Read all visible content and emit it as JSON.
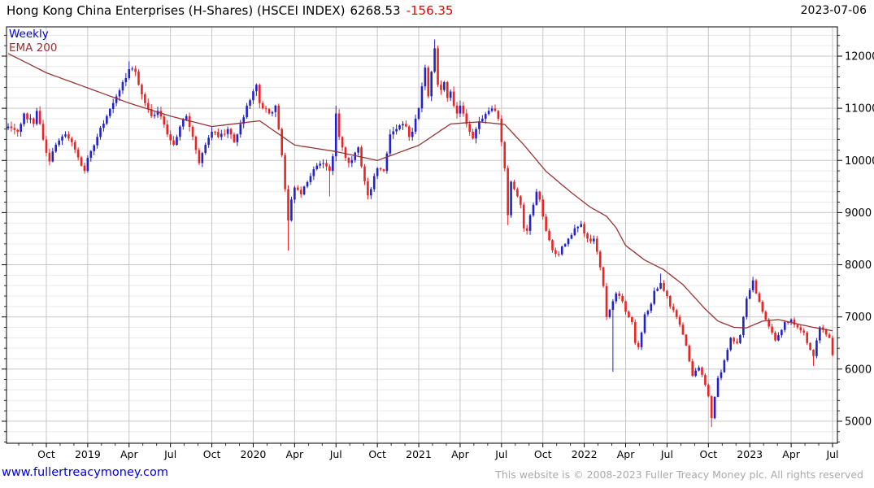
{
  "header": {
    "title": "Hong Kong China Enterprises (H-Shares) (HSCEI INDEX)",
    "last_price": "6268.53",
    "change": "-156.35",
    "date": "2023-07-06"
  },
  "overlays": {
    "timeframe_label": "Weekly",
    "ema_label": "EMA 200"
  },
  "footer": {
    "site_link": "www.fullertreacymoney.com",
    "copyright": "This website is © 2008-2023 Fuller Treacy Money plc. All rights reserved"
  },
  "colors": {
    "up": "#2222cc",
    "down": "#ee2222",
    "ema": "#993333",
    "grid_major": "#c6c6c6",
    "grid_minor": "#e9e9e9",
    "axis": "#000000",
    "change_red": "#ee0000",
    "link_blue": "#0000dd",
    "copyright_gray": "#a9a9a9"
  },
  "chart_data": {
    "type": "candlestick",
    "title": "Hong Kong China Enterprises (H-Shares) (HSCEI INDEX)",
    "timeframe": "Weekly",
    "overlay": "EMA 200",
    "last_close": 6268.53,
    "change": -156.35,
    "weeks_total": 260,
    "axes": {
      "ylim": [
        4578,
        12561
      ],
      "y_major_ticks": [
        12000,
        11000,
        10000,
        9000,
        8000,
        7000,
        6000,
        5000
      ],
      "y_minor_step": 200,
      "x_tick_labels": [
        "Oct",
        "2019",
        "Apr",
        "Jul",
        "Oct",
        "2020",
        "Apr",
        "Jul",
        "Oct",
        "2021",
        "Apr",
        "Jul",
        "Oct",
        "2022",
        "Apr",
        "Jul",
        "Oct",
        "2023",
        "Apr",
        "Jul"
      ],
      "x_major_start_week": 12,
      "x_major_interval_weeks": 13,
      "x_minor_per_quarter": 3,
      "grid": true
    },
    "close_anchors": [
      [
        0,
        10650
      ],
      [
        3,
        10550
      ],
      [
        5,
        10900
      ],
      [
        8,
        10700
      ],
      [
        9,
        10950
      ],
      [
        10,
        10700
      ],
      [
        11,
        10400
      ],
      [
        13,
        9980
      ],
      [
        15,
        10300
      ],
      [
        18,
        10500
      ],
      [
        20,
        10350
      ],
      [
        23,
        9900
      ],
      [
        24,
        9800
      ],
      [
        25,
        10050
      ],
      [
        28,
        10450
      ],
      [
        31,
        10850
      ],
      [
        33,
        11100
      ],
      [
        36,
        11500
      ],
      [
        38,
        11750
      ],
      [
        40,
        11700
      ],
      [
        41,
        11450
      ],
      [
        43,
        11100
      ],
      [
        45,
        10850
      ],
      [
        47,
        10950
      ],
      [
        50,
        10500
      ],
      [
        52,
        10300
      ],
      [
        54,
        10650
      ],
      [
        56,
        10850
      ],
      [
        59,
        10200
      ],
      [
        60,
        9950
      ],
      [
        62,
        10300
      ],
      [
        64,
        10550
      ],
      [
        66,
        10450
      ],
      [
        69,
        10600
      ],
      [
        71,
        10350
      ],
      [
        73,
        10700
      ],
      [
        75,
        11050
      ],
      [
        78,
        11450
      ],
      [
        79,
        11100
      ],
      [
        82,
        10900
      ],
      [
        84,
        11050
      ],
      [
        85,
        10600
      ],
      [
        86,
        10100
      ],
      [
        87,
        9450
      ],
      [
        88,
        8850
      ],
      [
        89,
        9250
      ],
      [
        90,
        9480
      ],
      [
        92,
        9350
      ],
      [
        93,
        9500
      ],
      [
        95,
        9700
      ],
      [
        97,
        9900
      ],
      [
        99,
        9950
      ],
      [
        101,
        9800
      ],
      [
        102,
        10080
      ],
      [
        103,
        10900
      ],
      [
        104,
        10450
      ],
      [
        105,
        10250
      ],
      [
        106,
        10050
      ],
      [
        107,
        9950
      ],
      [
        109,
        10150
      ],
      [
        110,
        10250
      ],
      [
        112,
        9600
      ],
      [
        113,
        9330
      ],
      [
        114,
        9450
      ],
      [
        115,
        9700
      ],
      [
        116,
        9850
      ],
      [
        118,
        9800
      ],
      [
        120,
        10500
      ],
      [
        122,
        10600
      ],
      [
        124,
        10700
      ],
      [
        125,
        10650
      ],
      [
        126,
        10450
      ],
      [
        127,
        10550
      ],
      [
        128,
        10800
      ],
      [
        129,
        11000
      ],
      [
        130,
        11420
      ],
      [
        131,
        11780
      ],
      [
        132,
        11230
      ],
      [
        133,
        11700
      ],
      [
        134,
        12150
      ],
      [
        135,
        11450
      ],
      [
        136,
        11350
      ],
      [
        137,
        11500
      ],
      [
        138,
        11200
      ],
      [
        139,
        11320
      ],
      [
        140,
        11050
      ],
      [
        141,
        10900
      ],
      [
        142,
        11050
      ],
      [
        143,
        10900
      ],
      [
        144,
        10700
      ],
      [
        145,
        10550
      ],
      [
        146,
        10420
      ],
      [
        147,
        10600
      ],
      [
        148,
        10750
      ],
      [
        149,
        10800
      ],
      [
        151,
        10950
      ],
      [
        153,
        10950
      ],
      [
        154,
        10800
      ],
      [
        155,
        10350
      ],
      [
        156,
        9850
      ],
      [
        157,
        8950
      ],
      [
        158,
        9590
      ],
      [
        159,
        9450
      ],
      [
        161,
        9150
      ],
      [
        162,
        8700
      ],
      [
        163,
        8650
      ],
      [
        164,
        8950
      ],
      [
        166,
        9400
      ],
      [
        167,
        9250
      ],
      [
        169,
        8650
      ],
      [
        171,
        8280
      ],
      [
        173,
        8200
      ],
      [
        174,
        8350
      ],
      [
        176,
        8500
      ],
      [
        178,
        8700
      ],
      [
        180,
        8780
      ],
      [
        181,
        8600
      ],
      [
        183,
        8450
      ],
      [
        184,
        8500
      ],
      [
        186,
        7950
      ],
      [
        187,
        7590
      ],
      [
        188,
        7000
      ],
      [
        190,
        7300
      ],
      [
        191,
        7450
      ],
      [
        193,
        7300
      ],
      [
        194,
        7100
      ],
      [
        196,
        6900
      ],
      [
        197,
        6500
      ],
      [
        198,
        6420
      ],
      [
        199,
        6700
      ],
      [
        200,
        7050
      ],
      [
        202,
        7250
      ],
      [
        203,
        7500
      ],
      [
        205,
        7650
      ],
      [
        207,
        7400
      ],
      [
        208,
        7200
      ],
      [
        210,
        7000
      ],
      [
        211,
        6850
      ],
      [
        213,
        6450
      ],
      [
        214,
        6150
      ],
      [
        215,
        5870
      ],
      [
        217,
        6030
      ],
      [
        218,
        5890
      ],
      [
        220,
        5480
      ],
      [
        221,
        5060
      ],
      [
        223,
        5830
      ],
      [
        224,
        5940
      ],
      [
        226,
        6370
      ],
      [
        227,
        6600
      ],
      [
        229,
        6500
      ],
      [
        230,
        6650
      ],
      [
        231,
        7000
      ],
      [
        232,
        7350
      ],
      [
        234,
        7700
      ],
      [
        235,
        7450
      ],
      [
        237,
        7100
      ],
      [
        238,
        6950
      ],
      [
        240,
        6700
      ],
      [
        241,
        6550
      ],
      [
        242,
        6650
      ],
      [
        243,
        6750
      ],
      [
        244,
        6900
      ],
      [
        246,
        6950
      ],
      [
        247,
        6850
      ],
      [
        248,
        6800
      ],
      [
        250,
        6700
      ],
      [
        251,
        6500
      ],
      [
        253,
        6250
      ],
      [
        254,
        6550
      ],
      [
        255,
        6800
      ],
      [
        256,
        6750
      ],
      [
        258,
        6600
      ],
      [
        259,
        6268.53
      ]
    ],
    "wick_overrides": {
      "highs": [
        [
          38,
          11900
        ],
        [
          103,
          11050
        ],
        [
          134,
          12320
        ],
        [
          205,
          7830
        ],
        [
          234,
          7770
        ]
      ],
      "lows": [
        [
          88,
          8270
        ],
        [
          101,
          9310
        ],
        [
          157,
          8760
        ],
        [
          190,
          5950
        ],
        [
          221,
          4890
        ],
        [
          253,
          6060
        ]
      ]
    },
    "ema_anchors": [
      [
        0,
        12050
      ],
      [
        12,
        11680
      ],
      [
        25,
        11390
      ],
      [
        38,
        11100
      ],
      [
        51,
        10850
      ],
      [
        64,
        10650
      ],
      [
        79,
        10760
      ],
      [
        90,
        10295
      ],
      [
        103,
        10170
      ],
      [
        116,
        10000
      ],
      [
        129,
        10290
      ],
      [
        139,
        10700
      ],
      [
        148,
        10740
      ],
      [
        156,
        10690
      ],
      [
        162,
        10300
      ],
      [
        169,
        9790
      ],
      [
        177,
        9380
      ],
      [
        183,
        9100
      ],
      [
        188,
        8930
      ],
      [
        191,
        8710
      ],
      [
        194,
        8370
      ],
      [
        200,
        8090
      ],
      [
        206,
        7905
      ],
      [
        212,
        7620
      ],
      [
        219,
        7150
      ],
      [
        223,
        6920
      ],
      [
        228,
        6800
      ],
      [
        232,
        6790
      ],
      [
        237,
        6920
      ],
      [
        242,
        6950
      ],
      [
        248,
        6865
      ],
      [
        253,
        6800
      ],
      [
        259,
        6735
      ]
    ],
    "noise": {
      "seed": 7,
      "wick_pct": 0.009,
      "close_jitter_pct": 0.0045
    }
  }
}
